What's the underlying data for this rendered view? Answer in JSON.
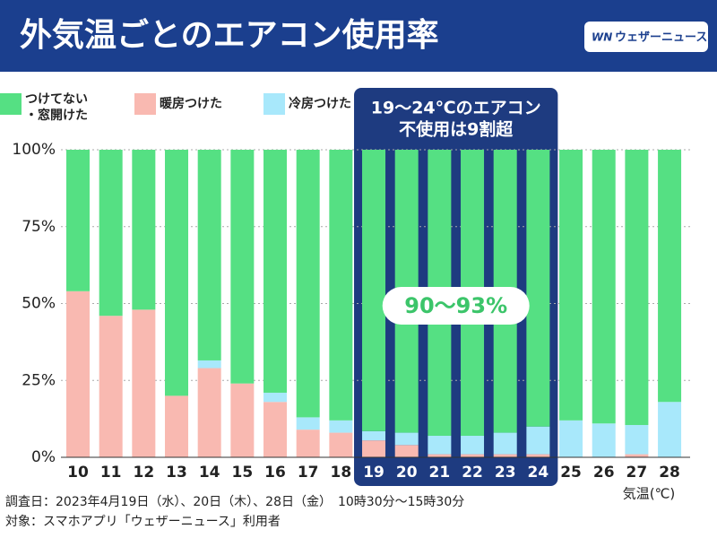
{
  "header": {
    "title": "外気温ごとのエアコン使用率",
    "logo_mark": "WN",
    "logo_text": "ウェザーニュース"
  },
  "chart_data": {
    "type": "stacked-bar",
    "categories": [
      "10",
      "11",
      "12",
      "13",
      "14",
      "15",
      "16",
      "17",
      "18",
      "19",
      "20",
      "21",
      "22",
      "23",
      "24",
      "25",
      "26",
      "27",
      "28"
    ],
    "series": [
      {
        "name": "暖房つけた",
        "color": "#f9b9b1",
        "values": [
          54,
          46,
          48,
          20,
          29,
          24,
          18,
          9,
          8,
          5.5,
          4,
          1,
          1,
          1,
          1,
          0,
          0,
          1,
          0
        ]
      },
      {
        "name": "冷房つけた",
        "color": "#a8e8fb",
        "values": [
          0,
          0,
          0,
          0,
          2.5,
          0,
          3,
          4,
          4,
          3,
          4,
          6,
          6,
          7,
          9,
          12,
          11,
          9.5,
          18
        ]
      },
      {
        "name": "つけてない・窓開けた",
        "color": "#55e083",
        "values": [
          46,
          54,
          52,
          80,
          68.5,
          76,
          79,
          87,
          88,
          91.5,
          92,
          93,
          93,
          92,
          90,
          88,
          89,
          89.5,
          82
        ]
      }
    ],
    "ylim": [
      0,
      100
    ],
    "yticks": [
      {
        "value": 0,
        "label": "0%"
      },
      {
        "value": 25,
        "label": "25%"
      },
      {
        "value": 50,
        "label": "50%"
      },
      {
        "value": 75,
        "label": "75%"
      },
      {
        "value": 100,
        "label": "100%"
      }
    ],
    "grid": true,
    "x_label": "気温(℃)",
    "highlight_categories": [
      "19",
      "24"
    ],
    "highlight_text": [
      "19〜24℃のエアコン",
      "不使用は9割超"
    ],
    "callout": "90〜93%",
    "notes": [
      "調査日：2023年4月19日（水）、20日（木）、28日（金）　10時30分〜15時30分",
      "対象：スマホアプリ「ウェザーニュース」利用者"
    ]
  }
}
